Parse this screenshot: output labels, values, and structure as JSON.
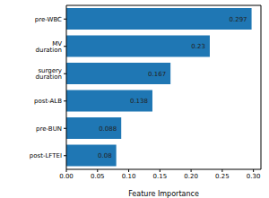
{
  "chart_data": {
    "type": "bar",
    "orientation": "horizontal",
    "categories": [
      "pre-WBC",
      "MV duration",
      "surgery duration",
      "post-ALB",
      "pre-BUN",
      "post-LFTEI"
    ],
    "values": [
      0.297,
      0.23,
      0.167,
      0.138,
      0.088,
      0.08
    ],
    "color": "#1f77b4",
    "xlabel": "Feature Importance",
    "xlim": [
      0,
      0.312
    ],
    "xticks": [
      {
        "value": 0,
        "label": "0.00"
      },
      {
        "value": 0.05,
        "label": "0.05"
      },
      {
        "value": 0.1,
        "label": "0.10"
      },
      {
        "value": 0.15,
        "label": "0.15"
      },
      {
        "value": 0.2,
        "label": "0.20"
      },
      {
        "value": 0.25,
        "label": "0.25"
      },
      {
        "value": 0.3,
        "label": "0.30"
      }
    ],
    "data_labels": true
  }
}
